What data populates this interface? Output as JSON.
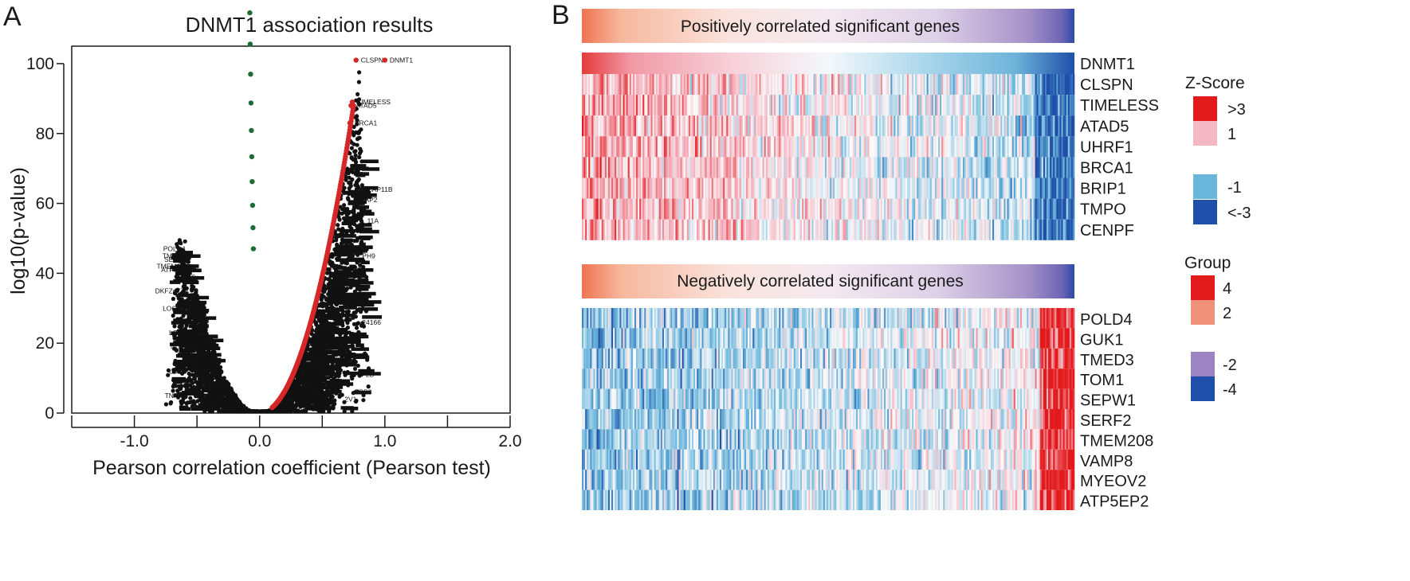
{
  "panels": {
    "a": {
      "label": "A"
    },
    "b": {
      "label": "B"
    }
  },
  "colors": {
    "positive": "#d62728",
    "negative": "#1d6b35",
    "neutral": "#111111",
    "heat_high": "#e31a1c",
    "heat_mid_high": "#f4b8c4",
    "heat_low": "#6bb6db",
    "heat_very_low": "#1f4fa8",
    "group_4": "#e31a1c",
    "group_2": "#f0917a",
    "group_neg2": "#9c84c2",
    "group_neg4": "#1f4fa8"
  },
  "chart_data": [
    {
      "type": "scatter",
      "title": "DNMT1 association results",
      "xlabel": "Pearson correlation coefficient (Pearson test)",
      "ylabel": "log10(p-value)",
      "xlim": [
        -1.5,
        2.0
      ],
      "ylim": [
        0,
        105
      ],
      "xticks": [
        "-1.0",
        "0.0",
        "1.0",
        "2.0"
      ],
      "xtick_values": [
        -1.0,
        0.0,
        1.0,
        2.0
      ],
      "yticks": [
        "0",
        "20",
        "40",
        "60",
        "80",
        "100"
      ],
      "ytick_values": [
        0,
        20,
        40,
        60,
        80,
        100
      ],
      "grid": false,
      "series": [
        {
          "color_role": "positive",
          "curve": {
            "x_from": 0.1,
            "x_to": 0.75,
            "exponent": 2.0,
            "y_at_end": 88
          }
        },
        {
          "color_role": "negative",
          "curve": {
            "x_from": -0.58,
            "x_to": -0.05,
            "exponent": 2.0,
            "y_at_end": 47
          }
        }
      ],
      "labeled_points": [
        {
          "label": "CLSPN",
          "x": 0.77,
          "y": 101
        },
        {
          "label": "DNMT1",
          "x": 1.0,
          "y": 101
        },
        {
          "label": "TIMELESS",
          "x": 0.74,
          "y": 89
        },
        {
          "label": "ATAD5",
          "x": 0.73,
          "y": 88
        },
        {
          "label": "BRCA1",
          "x": 0.72,
          "y": 83
        },
        {
          "label": "POLD4",
          "x": -0.58,
          "y": 47
        },
        {
          "label": "TMED3",
          "x": -0.58,
          "y": 45
        },
        {
          "label": "SEPW1",
          "x": -0.56,
          "y": 44
        },
        {
          "label": "TMEM208",
          "x": -0.56,
          "y": 42
        },
        {
          "label": "ATP5EP2",
          "x": -0.54,
          "y": 41
        },
        {
          "label": "MYL6",
          "x": -0.5,
          "y": 39
        },
        {
          "label": "DKFZp779",
          "x": -0.56,
          "y": 35
        },
        {
          "label": "LOC1",
          "x": -0.62,
          "y": 30
        },
        {
          "label": "LOC",
          "x": -0.6,
          "y": 23
        },
        {
          "label": "NC",
          "x": -0.62,
          "y": 19
        },
        {
          "label": "LOC",
          "x": -0.6,
          "y": 12
        },
        {
          "label": "TNF",
          "x": -0.64,
          "y": 5
        },
        {
          "label": "CAP11B",
          "x": 0.82,
          "y": 64
        },
        {
          "label": "AP2",
          "x": 0.8,
          "y": 61
        },
        {
          "label": "11A",
          "x": 0.82,
          "y": 55
        },
        {
          "label": "PH9",
          "x": 0.78,
          "y": 45
        },
        {
          "label": "24166",
          "x": 0.78,
          "y": 26
        },
        {
          "label": "EF2B",
          "x": 0.74,
          "y": 11
        },
        {
          "label": "EBP3",
          "x": 0.72,
          "y": 6
        },
        {
          "label": "2V1",
          "x": 0.64,
          "y": 4
        }
      ]
    },
    {
      "type": "heatmap",
      "titles": {
        "positive": "Positively correlated significant genes",
        "negative": "Negatively correlated significant genes"
      },
      "positive_genes": [
        "DNMT1",
        "CLSPN",
        "TIMELESS",
        "ATAD5",
        "UHRF1",
        "BRCA1",
        "BRIP1",
        "TMPO",
        "CENPF"
      ],
      "negative_genes": [
        "POLD4",
        "GUK1",
        "TMED3",
        "TOM1",
        "SEPW1",
        "SERF2",
        "TMEM208",
        "VAMP8",
        "MYEOV2",
        "ATP5EP2"
      ],
      "legend": {
        "zscore": {
          "title": "Z-Score",
          "entries": [
            ">3",
            "1",
            "-1",
            "<-3"
          ]
        },
        "group": {
          "title": "Group",
          "entries": [
            "4",
            "2",
            "-2",
            "-4"
          ]
        }
      },
      "columns": 300,
      "positive_trend": "high to low, left to right",
      "negative_trend": "low to high, left to right"
    }
  ]
}
